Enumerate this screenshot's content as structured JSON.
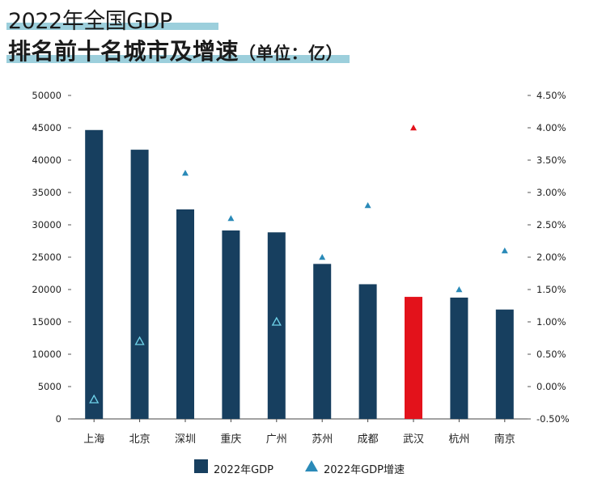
{
  "title": {
    "line1": "2022年全国GDP",
    "line2": "排名前十名城市及增速",
    "line2_unit": "（单位：亿）"
  },
  "chart_data": {
    "type": "bar",
    "categories": [
      "上海",
      "北京",
      "深圳",
      "重庆",
      "广州",
      "苏州",
      "成都",
      "武汉",
      "杭州",
      "南京"
    ],
    "series": [
      {
        "name": "2022年GDP",
        "type": "bar",
        "axis": "left",
        "values": [
          44653,
          41611,
          32387,
          29129,
          28839,
          23958,
          20818,
          18866,
          18753,
          16908
        ],
        "color": "#173f5f",
        "highlight_index": 7,
        "highlight_color": "#e3121b"
      },
      {
        "name": "2022年GDP增速",
        "type": "scatter",
        "marker": "triangle",
        "axis": "right",
        "values": [
          -0.2,
          0.7,
          3.3,
          2.6,
          1.0,
          2.0,
          2.8,
          4.0,
          1.5,
          2.1
        ],
        "color": "#2a8ab8",
        "highlight_index": 7,
        "highlight_color": "#e3121b"
      }
    ],
    "y_left": {
      "min": 0,
      "max": 50000,
      "step": 5000,
      "ticks": [
        "0",
        "5000",
        "10000",
        "15000",
        "20000",
        "25000",
        "30000",
        "35000",
        "40000",
        "45000",
        "50000"
      ]
    },
    "y_right": {
      "min": -0.5,
      "max": 4.5,
      "step": 0.5,
      "ticks": [
        "-0.50%",
        "0.00%",
        "0.50%",
        "1.00%",
        "1.50%",
        "2.00%",
        "2.50%",
        "3.00%",
        "3.50%",
        "4.00%",
        "4.50%"
      ]
    },
    "grid": false,
    "legend_position": "bottom"
  },
  "legend": {
    "bar_label": "2022年GDP",
    "tri_label": "2022年GDP增速"
  }
}
